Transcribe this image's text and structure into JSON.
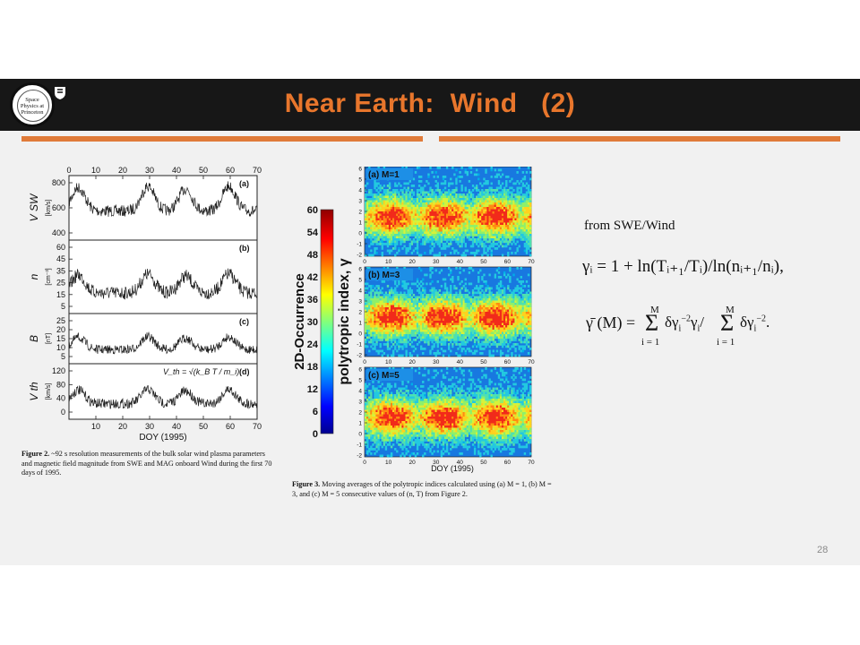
{
  "slide": {
    "title": "Near Earth:  Wind   (2)",
    "logo_text": [
      "Space",
      "Physics at",
      "Princeton"
    ],
    "page_number": "28"
  },
  "figure2": {
    "top_axis_ticks": [
      "0",
      "10",
      "20",
      "30",
      "40",
      "50",
      "60",
      "70"
    ],
    "bottom_axis_ticks": [
      "10",
      "20",
      "30",
      "40",
      "50",
      "60",
      "70"
    ],
    "xlabel": "DOY (1995)",
    "panels": [
      {
        "tag": "(a)",
        "ylabel": "V",
        "ysub": "SW",
        "yunit": "[km/s]",
        "yticks": [
          "800",
          "600",
          "400"
        ]
      },
      {
        "tag": "(b)",
        "ylabel": "n",
        "ysub": "",
        "yunit": "[cm⁻³]",
        "yticks": [
          "60",
          "45",
          "35",
          "25",
          "15",
          "5"
        ]
      },
      {
        "tag": "(c)",
        "ylabel": "B",
        "ysub": "",
        "yunit": "[nT]",
        "yticks": [
          "25",
          "20",
          "15",
          "10",
          "5"
        ]
      },
      {
        "tag": "(d)",
        "ylabel": "V",
        "ysub": "th",
        "yunit": "[km/s]",
        "yticks": [
          "120",
          "80",
          "40",
          "0"
        ],
        "annotation": "V_th = √(k_B T / m_i)"
      }
    ],
    "caption_label": "Figure 2.",
    "caption": "~92 s resolution measurements of the bulk solar wind plasma parameters and magnetic field magnitude from SWE and MAG onboard Wind during the first 70 days of 1995."
  },
  "figure3": {
    "colorbar_ticks": [
      "60",
      "54",
      "48",
      "42",
      "36",
      "30",
      "24",
      "18",
      "12",
      "6",
      "0"
    ],
    "colorbar_label": "2D-Occurrence",
    "ylabel": "polytropic index, γ",
    "panels": [
      {
        "tag": "(a) M=1"
      },
      {
        "tag": "(b) M=3"
      },
      {
        "tag": "(c) M=5"
      }
    ],
    "yticks": [
      "6",
      "5",
      "4",
      "3",
      "2",
      "1",
      "0",
      "-1",
      "-2"
    ],
    "xticks": [
      "0",
      "10",
      "20",
      "30",
      "40",
      "50",
      "60",
      "70"
    ],
    "xlabel": "DOY (1995)",
    "caption_label": "Figure 3.",
    "caption": "Moving averages of the polytropic indices calculated using (a) M = 1, (b) M = 3, and (c) M = 5 consecutive values of (n, T) from Figure 2."
  },
  "equations": {
    "source": "from  SWE/Wind",
    "gamma_i": "γᵢ = 1 + ln(Tᵢ₊₁/Tᵢ)/ln(nᵢ₊₁/nᵢ),",
    "gamma_bar": "γ̄(M) = Σ δγᵢ⁻² γᵢ / Σ δγᵢ⁻².",
    "sum_upper": "M",
    "sum_lower": "i = 1"
  },
  "colors": {
    "header_bg": "#171717",
    "title": "#e8762c",
    "rule": "#e07b39",
    "slide_bg": "#f1f1f1"
  }
}
